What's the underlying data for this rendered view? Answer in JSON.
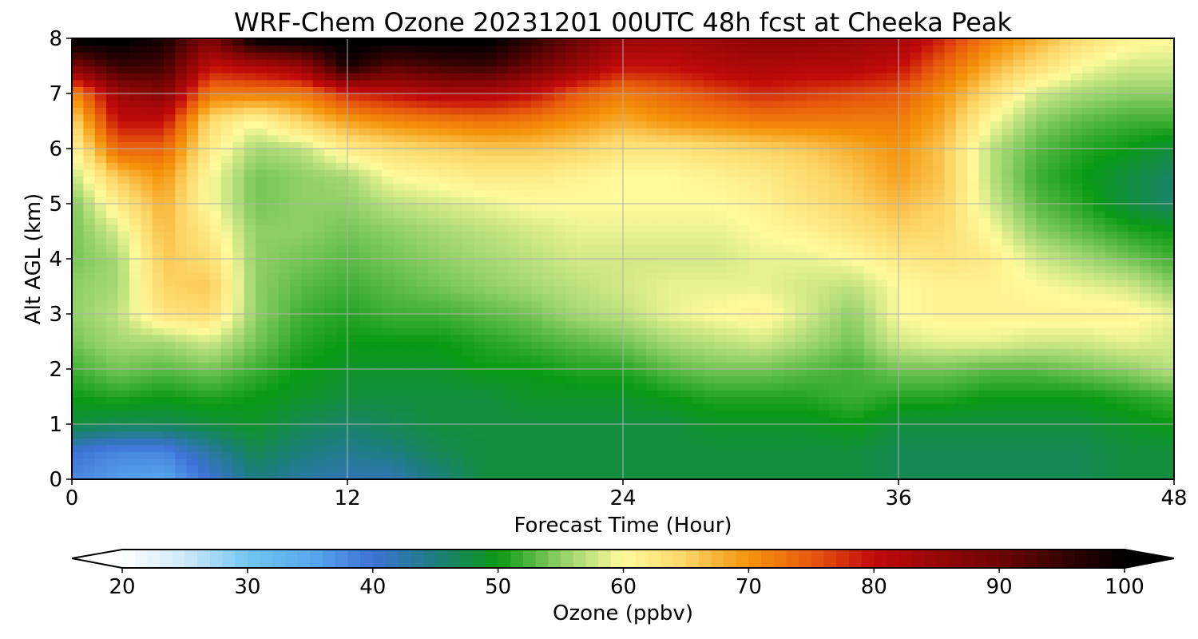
{
  "chart_data": {
    "type": "heatmap",
    "title": "WRF-Chem Ozone  20231201 00UTC 48h fcst at Cheeka Peak",
    "xlabel": "Forecast Time (Hour)",
    "ylabel": "Alt AGL (km)",
    "xlim": [
      0,
      48
    ],
    "ylim": [
      0,
      8
    ],
    "x_ticks": [
      0,
      12,
      24,
      36,
      48
    ],
    "y_ticks": [
      0,
      1,
      2,
      3,
      4,
      5,
      6,
      7,
      8
    ],
    "grid": true,
    "x": [
      0,
      2,
      4,
      6,
      8,
      10,
      12,
      14,
      16,
      18,
      20,
      22,
      24,
      26,
      28,
      30,
      32,
      34,
      36,
      38,
      40,
      42,
      44,
      46,
      48
    ],
    "y": [
      0,
      0.5,
      1,
      1.5,
      2,
      2.5,
      3,
      3.5,
      4,
      4.5,
      5,
      5.5,
      6,
      6.5,
      7,
      7.5,
      8
    ],
    "z": [
      [
        38,
        36,
        35,
        40,
        45,
        43,
        42,
        42,
        45,
        48,
        48,
        48,
        48,
        48,
        48,
        48,
        48,
        48,
        47,
        47,
        47,
        47,
        47,
        48,
        48
      ],
      [
        40,
        38,
        38,
        43,
        47,
        45,
        44,
        45,
        47,
        48,
        48,
        48,
        48,
        48,
        48,
        48,
        48,
        48,
        47,
        47,
        47,
        47,
        47,
        48,
        48
      ],
      [
        48,
        47,
        47,
        48,
        49,
        47,
        46,
        47,
        48,
        48,
        48,
        48,
        48,
        48,
        49,
        49,
        49,
        50,
        48,
        48,
        48,
        48,
        48,
        49,
        50
      ],
      [
        50,
        51,
        50,
        51,
        50,
        49,
        48,
        48,
        48,
        48,
        49,
        49,
        49,
        50,
        51,
        51,
        51,
        52,
        51,
        51,
        50,
        50,
        50,
        51,
        52
      ],
      [
        52,
        54,
        53,
        54,
        52,
        50,
        49,
        49,
        49,
        50,
        50,
        51,
        51,
        53,
        54,
        54,
        53,
        52,
        54,
        54,
        53,
        53,
        54,
        55,
        57
      ],
      [
        54,
        56,
        56,
        58,
        54,
        51,
        50,
        50,
        50,
        51,
        52,
        53,
        54,
        56,
        57,
        58,
        56,
        54,
        58,
        59,
        59,
        58,
        58,
        59,
        58
      ],
      [
        55,
        57,
        63,
        64,
        55,
        52,
        51,
        52,
        52,
        53,
        54,
        56,
        57,
        59,
        60,
        61,
        58,
        55,
        60,
        61,
        61,
        61,
        61,
        61,
        59
      ],
      [
        55,
        56,
        65,
        66,
        55,
        53,
        52,
        53,
        54,
        55,
        56,
        57,
        58,
        59,
        59,
        59,
        58,
        57,
        60,
        61,
        61,
        60,
        59,
        58,
        55
      ],
      [
        54,
        56,
        66,
        64,
        55,
        54,
        53,
        54,
        55,
        56,
        57,
        58,
        58,
        58,
        58,
        59,
        59,
        60,
        62,
        63,
        62,
        58,
        56,
        54,
        52
      ],
      [
        54,
        58,
        67,
        62,
        55,
        55,
        54,
        55,
        56,
        57,
        58,
        59,
        59,
        59,
        59,
        60,
        61,
        63,
        65,
        64,
        60,
        55,
        53,
        51,
        50
      ],
      [
        54,
        62,
        68,
        60,
        54,
        55,
        55,
        57,
        58,
        59,
        60,
        60,
        60,
        60,
        60,
        61,
        63,
        65,
        67,
        65,
        58,
        53,
        51,
        48,
        46
      ],
      [
        57,
        66,
        70,
        60,
        54,
        55,
        56,
        60,
        61,
        62,
        62,
        61,
        60,
        60,
        61,
        62,
        64,
        66,
        69,
        66,
        57,
        52,
        50,
        48,
        46
      ],
      [
        60,
        74,
        74,
        62,
        56,
        57,
        62,
        64,
        65,
        66,
        66,
        65,
        63,
        63,
        64,
        65,
        66,
        68,
        70,
        66,
        57,
        53,
        51,
        50,
        48
      ],
      [
        64,
        80,
        80,
        64,
        60,
        65,
        69,
        71,
        72,
        73,
        72,
        70,
        68,
        70,
        71,
        72,
        72,
        72,
        72,
        68,
        60,
        55,
        53,
        52,
        52
      ],
      [
        70,
        84,
        87,
        72,
        72,
        72,
        78,
        80,
        82,
        82,
        80,
        75,
        72,
        74,
        76,
        78,
        77,
        76,
        75,
        70,
        64,
        58,
        56,
        55,
        55
      ],
      [
        88,
        95,
        94,
        80,
        82,
        85,
        98,
        92,
        94,
        95,
        90,
        85,
        80,
        80,
        82,
        83,
        82,
        82,
        80,
        74,
        68,
        64,
        60,
        58,
        58
      ],
      [
        101,
        101,
        98,
        88,
        101,
        101,
        101,
        101,
        101,
        101,
        96,
        90,
        85,
        84,
        85,
        86,
        86,
        85,
        84,
        78,
        72,
        68,
        64,
        61,
        60
      ]
    ],
    "colorbar": {
      "label": "Ozone  (ppbv)",
      "min": 20,
      "max": 100,
      "ticks": [
        20,
        30,
        40,
        50,
        60,
        70,
        80,
        90,
        100
      ],
      "extend": "both"
    },
    "colors": {
      "stops": [
        [
          20,
          "#ffffff"
        ],
        [
          25,
          "#cfe9f8"
        ],
        [
          30,
          "#72c6f2"
        ],
        [
          35,
          "#58a8ee"
        ],
        [
          40,
          "#3d72d6"
        ],
        [
          45,
          "#1d7e7e"
        ],
        [
          50,
          "#0a9a14"
        ],
        [
          55,
          "#8fd066"
        ],
        [
          60,
          "#fffa9c"
        ],
        [
          65,
          "#fcd566"
        ],
        [
          70,
          "#f5930a"
        ],
        [
          75,
          "#e85a0c"
        ],
        [
          80,
          "#c20a0a"
        ],
        [
          90,
          "#6e0404"
        ],
        [
          100,
          "#000000"
        ]
      ],
      "under": "#ffffff",
      "over": "#000000",
      "grid": "#b0b0b0"
    }
  }
}
